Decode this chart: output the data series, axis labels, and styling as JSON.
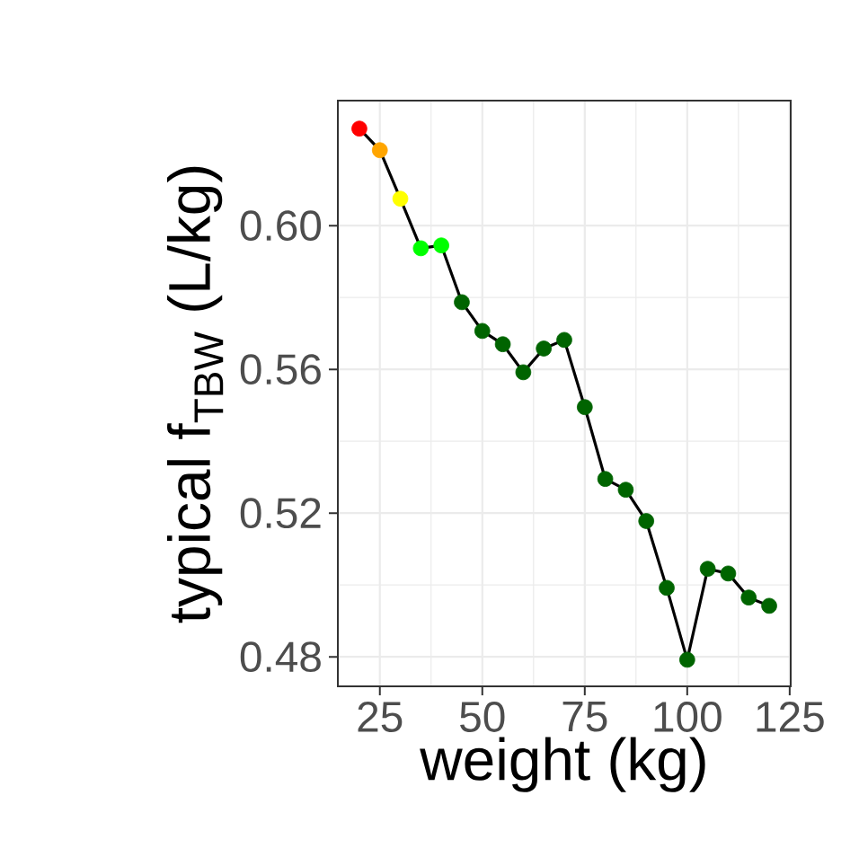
{
  "chart_data": {
    "type": "line",
    "xlabel": "weight (kg)",
    "ylabel": "typical f$_{TBW}$ (L/kg)",
    "x": [
      20,
      25,
      30,
      35,
      40,
      45,
      50,
      55,
      60,
      65,
      70,
      75,
      80,
      85,
      90,
      95,
      100,
      105,
      110,
      115,
      120
    ],
    "values": [
      0.627,
      0.621,
      0.6075,
      0.5937,
      0.5945,
      0.5787,
      0.5707,
      0.567,
      0.5592,
      0.5658,
      0.5682,
      0.5495,
      0.5295,
      0.5265,
      0.5178,
      0.4992,
      0.4792,
      0.5045,
      0.5032,
      0.4965,
      0.4942
    ],
    "color": "#000000",
    "colors": [
      "#ff0000",
      "#ffa500",
      "#ffff00",
      "#00ff00",
      "#00ff00",
      "#006400",
      "#006400",
      "#006400",
      "#006400",
      "#006400",
      "#006400",
      "#006400",
      "#006400",
      "#006400",
      "#006400",
      "#006400",
      "#006400",
      "#006400",
      "#006400",
      "#006400",
      "#006400"
    ],
    "marker": "circle",
    "line_style": "solid",
    "grid": true,
    "xlim": [
      14.75,
      125.25
    ],
    "ylim": [
      0.4718,
      0.6348
    ],
    "xticks": [
      25,
      50,
      75,
      100,
      125
    ],
    "yticks": [
      {
        "value": 0.48,
        "label": "0.48"
      },
      {
        "value": 0.52,
        "label": "0.52"
      },
      {
        "value": 0.56,
        "label": "0.56"
      },
      {
        "value": 0.6,
        "label": "0.60"
      }
    ]
  }
}
